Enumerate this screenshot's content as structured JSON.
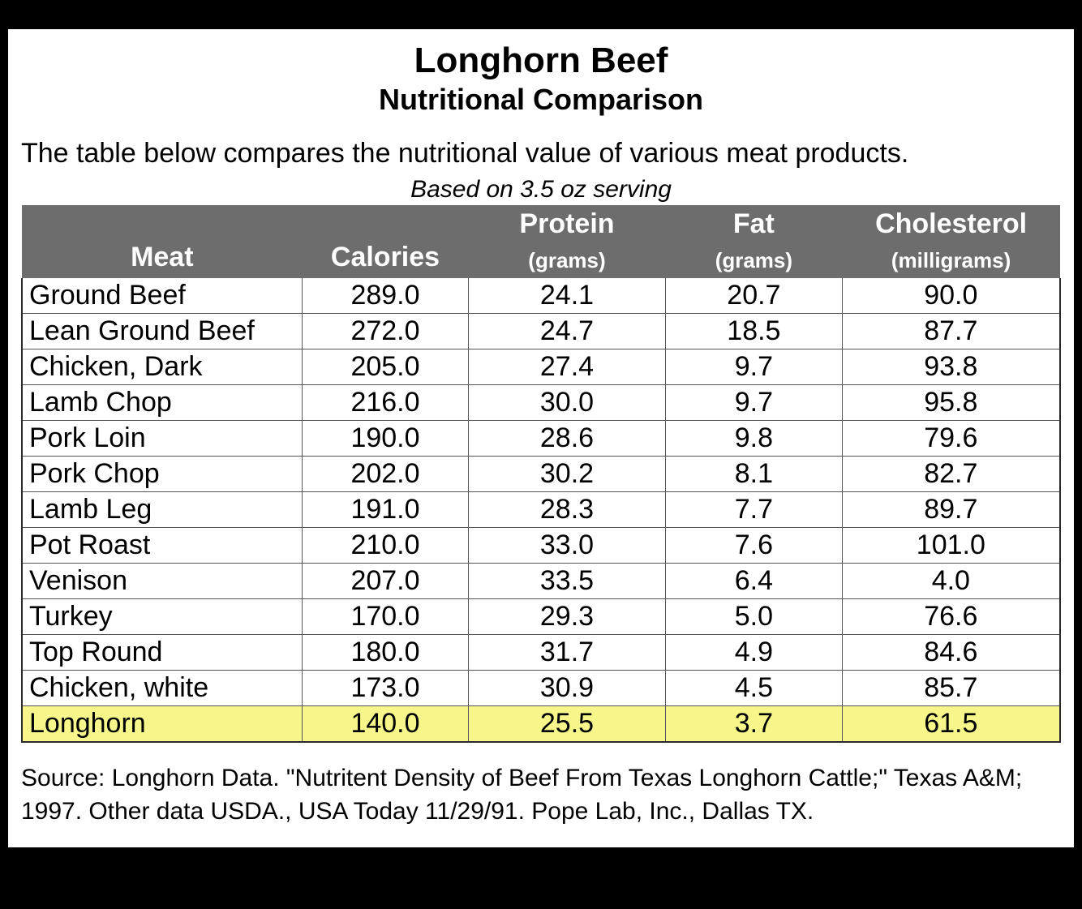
{
  "title": "Longhorn Beef",
  "subtitle": "Nutritional Comparison",
  "intro": "The table below compares the nutritional value of various meat products.",
  "serving_note": "Based on 3.5 oz serving",
  "table": {
    "type": "table",
    "columns": [
      {
        "key": "meat",
        "label": "Meat",
        "units": "",
        "align": "left",
        "width_pct": 27
      },
      {
        "key": "calories",
        "label": "Calories",
        "units": "",
        "align": "center",
        "width_pct": 16
      },
      {
        "key": "protein",
        "label": "Protein",
        "units": "(grams)",
        "align": "center",
        "width_pct": 19
      },
      {
        "key": "fat",
        "label": "Fat",
        "units": "(grams)",
        "align": "center",
        "width_pct": 17
      },
      {
        "key": "cholesterol",
        "label": "Cholesterol",
        "units": "(milligrams)",
        "align": "center",
        "width_pct": 21
      }
    ],
    "header_bg": "#6d6d6d",
    "header_fg": "#ffffff",
    "row_border_color": "#555555",
    "outer_border_color": "#2b2b2b",
    "highlight_bg": "#f6f68a",
    "body_fontsize_pt": 26,
    "header_fontsize_pt": 26,
    "units_fontsize_pt": 20,
    "rows": [
      {
        "meat": "Ground Beef",
        "calories": "289.0",
        "protein": "24.1",
        "fat": "20.7",
        "cholesterol": "90.0",
        "highlight": false
      },
      {
        "meat": "Lean Ground Beef",
        "calories": "272.0",
        "protein": "24.7",
        "fat": "18.5",
        "cholesterol": "87.7",
        "highlight": false
      },
      {
        "meat": "Chicken, Dark",
        "calories": "205.0",
        "protein": "27.4",
        "fat": "9.7",
        "cholesterol": "93.8",
        "highlight": false
      },
      {
        "meat": "Lamb Chop",
        "calories": "216.0",
        "protein": "30.0",
        "fat": "9.7",
        "cholesterol": "95.8",
        "highlight": false
      },
      {
        "meat": "Pork Loin",
        "calories": "190.0",
        "protein": "28.6",
        "fat": "9.8",
        "cholesterol": "79.6",
        "highlight": false
      },
      {
        "meat": "Pork Chop",
        "calories": "202.0",
        "protein": "30.2",
        "fat": "8.1",
        "cholesterol": "82.7",
        "highlight": false
      },
      {
        "meat": "Lamb Leg",
        "calories": "191.0",
        "protein": "28.3",
        "fat": "7.7",
        "cholesterol": "89.7",
        "highlight": false
      },
      {
        "meat": "Pot Roast",
        "calories": "210.0",
        "protein": "33.0",
        "fat": "7.6",
        "cholesterol": "101.0",
        "highlight": false
      },
      {
        "meat": "Venison",
        "calories": "207.0",
        "protein": "33.5",
        "fat": "6.4",
        "cholesterol": "4.0",
        "highlight": false
      },
      {
        "meat": "Turkey",
        "calories": "170.0",
        "protein": "29.3",
        "fat": "5.0",
        "cholesterol": "76.6",
        "highlight": false
      },
      {
        "meat": "Top Round",
        "calories": "180.0",
        "protein": "31.7",
        "fat": "4.9",
        "cholesterol": "84.6",
        "highlight": false
      },
      {
        "meat": "Chicken, white",
        "calories": "173.0",
        "protein": "30.9",
        "fat": "4.5",
        "cholesterol": "85.7",
        "highlight": false
      },
      {
        "meat": "Longhorn",
        "calories": "140.0",
        "protein": "25.5",
        "fat": "3.7",
        "cholesterol": "61.5",
        "highlight": true
      }
    ]
  },
  "source": "Source: Longhorn Data. \"Nutritent Density of Beef From Texas Longhorn Cattle;\" Texas A&M; 1997. Other data USDA., USA Today 11/29/91. Pope Lab, Inc., Dallas TX.",
  "colors": {
    "page_bg": "#000000",
    "sheet_bg": "#ffffff",
    "text": "#000000"
  }
}
